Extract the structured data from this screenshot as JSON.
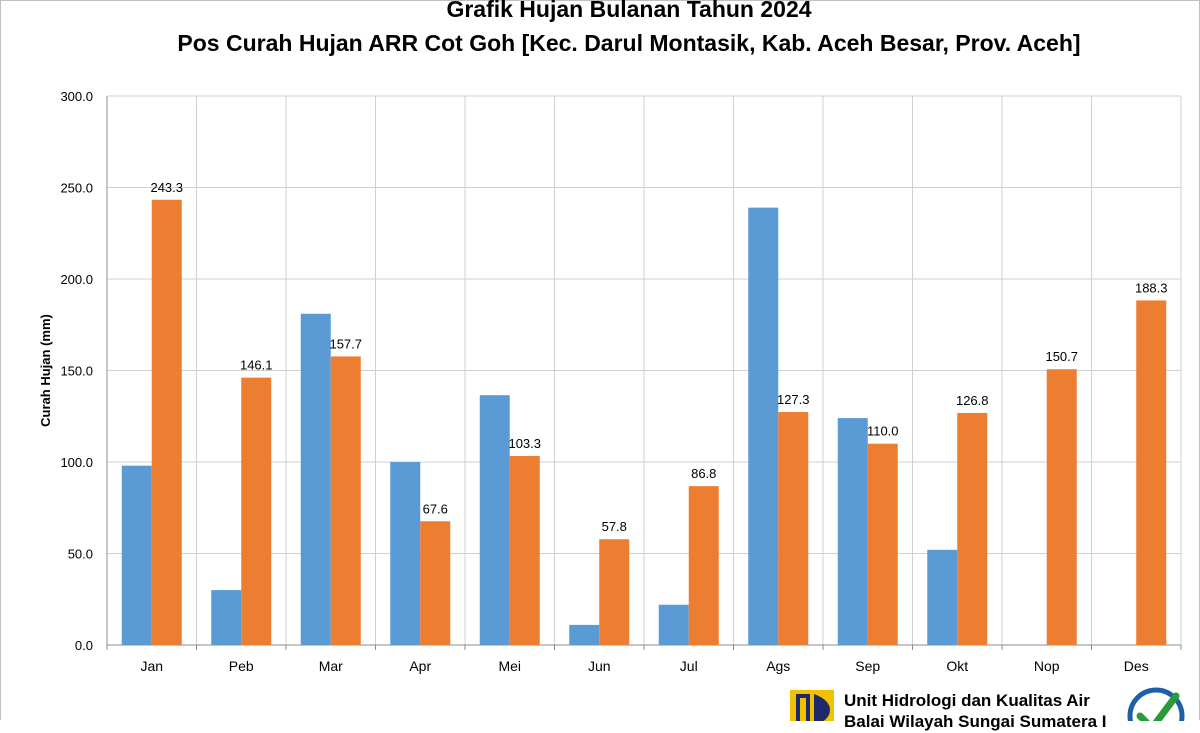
{
  "chart_data": {
    "type": "bar",
    "title": "Grafik Hujan Bulanan Tahun 2024",
    "subtitle": "Pos Curah Hujan ARR Cot Goh [Kec. Darul Montasik, Kab. Aceh Besar, Prov. Aceh]",
    "xlabel": "",
    "ylabel": "Curah Hujan (mm)",
    "ylim": [
      0,
      300
    ],
    "yticks": [
      "0.0",
      "50.0",
      "100.0",
      "150.0",
      "200.0",
      "250.0",
      "300.0"
    ],
    "grid": true,
    "categories": [
      "Jan",
      "Peb",
      "Mar",
      "Apr",
      "Mei",
      "Jun",
      "Jul",
      "Ags",
      "Sep",
      "Okt",
      "Nop",
      "Des"
    ],
    "series": [
      {
        "color": "#5b9bd5",
        "values": [
          98,
          30,
          181,
          100,
          136.5,
          11,
          22,
          239,
          124,
          52,
          null,
          null
        ],
        "labels": [
          "",
          "",
          "",
          "",
          "",
          "",
          "",
          "",
          "",
          "",
          "",
          ""
        ]
      },
      {
        "color": "#ed7d31",
        "values": [
          243.3,
          146.1,
          157.7,
          67.6,
          103.3,
          57.8,
          86.8,
          127.3,
          110.0,
          126.8,
          150.7,
          188.3
        ],
        "labels": [
          "243.3",
          "146.1",
          "157.7",
          "67.6",
          "103.3",
          "57.8",
          "86.8",
          "127.3",
          "110.0",
          "126.8",
          "150.7",
          "188.3"
        ]
      }
    ]
  },
  "footer": {
    "org_line1": "Unit Hidrologi dan Kualitas Air",
    "org_line2": "Balai Wilayah Sungai Sumatera I",
    "logo_icon": "pu-logo-icon",
    "badge_icon": "iso-certification-badge-icon",
    "logo_colors": [
      "#f2c200",
      "#1f2a6b"
    ],
    "badge_color": "#2b9b3a"
  }
}
